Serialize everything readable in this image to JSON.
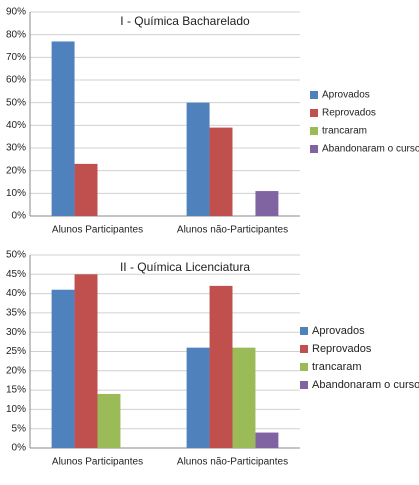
{
  "chart_data": [
    {
      "type": "bar",
      "title": "I - Química Bacharelado",
      "categories": [
        "Alunos Participantes",
        "Alunos não-Participantes"
      ],
      "series": [
        {
          "name": "Aprovados",
          "color": "#4f81bd",
          "values": [
            77,
            50
          ]
        },
        {
          "name": "Reprovados",
          "color": "#c0504d",
          "values": [
            23,
            39
          ]
        },
        {
          "name": "trancaram",
          "color": "#9bbb59",
          "values": [
            0,
            0
          ]
        },
        {
          "name": "Abandonaram o curso",
          "color": "#8064a2",
          "values": [
            0,
            11
          ]
        }
      ],
      "ylim": [
        0,
        90
      ],
      "yticks": [
        {
          "value": 0,
          "label": "0%"
        },
        {
          "value": 10,
          "label": "10%"
        },
        {
          "value": 20,
          "label": "20%"
        },
        {
          "value": 30,
          "label": "30%"
        },
        {
          "value": 40,
          "label": "40%"
        },
        {
          "value": 50,
          "label": "50%"
        },
        {
          "value": 60,
          "label": "60%"
        },
        {
          "value": 70,
          "label": "70%"
        },
        {
          "value": 80,
          "label": "80%"
        },
        {
          "value": 90,
          "label": "90%"
        }
      ],
      "grid": true,
      "legend": "right"
    },
    {
      "type": "bar",
      "title": "II - Química Licenciatura",
      "categories": [
        "Alunos Participantes",
        "Alunos não-Participantes"
      ],
      "series": [
        {
          "name": "Aprovados",
          "color": "#4f81bd",
          "values": [
            41,
            26
          ]
        },
        {
          "name": "Reprovados",
          "color": "#c0504d",
          "values": [
            45,
            42
          ]
        },
        {
          "name": "trancaram",
          "color": "#9bbb59",
          "values": [
            14,
            26
          ]
        },
        {
          "name": "Abandonaram o curso",
          "color": "#8064a2",
          "values": [
            0,
            4
          ]
        }
      ],
      "ylim": [
        0,
        50
      ],
      "yticks": [
        {
          "value": 0,
          "label": "0%"
        },
        {
          "value": 5,
          "label": "5%"
        },
        {
          "value": 10,
          "label": "10%"
        },
        {
          "value": 15,
          "label": "15%"
        },
        {
          "value": 20,
          "label": "20%"
        },
        {
          "value": 25,
          "label": "25%"
        },
        {
          "value": 30,
          "label": "30%"
        },
        {
          "value": 35,
          "label": "35%"
        },
        {
          "value": 40,
          "label": "40%"
        },
        {
          "value": 45,
          "label": "45%"
        },
        {
          "value": 50,
          "label": "50%"
        }
      ],
      "grid": true,
      "legend": "right"
    }
  ]
}
